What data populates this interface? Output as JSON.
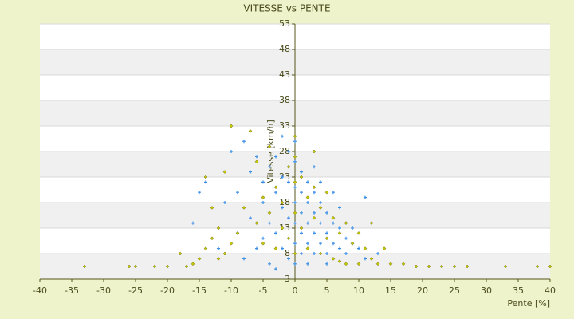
{
  "chart_data": {
    "type": "scatter",
    "title": "VITESSE vs PENTE",
    "x_label": "Pente [%]",
    "y_label": "Vitesse [km/h]",
    "xlim": [
      -40,
      40
    ],
    "xticks": [
      -40,
      -35,
      -30,
      -25,
      -20,
      -15,
      -10,
      -5,
      0,
      5,
      10,
      15,
      20,
      25,
      30,
      35,
      40
    ],
    "ylim": [
      3,
      53
    ],
    "yticks": [
      3,
      8,
      13,
      18,
      23,
      28,
      33,
      38,
      43,
      48,
      53
    ],
    "grid": true,
    "series": [
      {
        "color": "#3a8ee6",
        "marker": "plus",
        "x": [
          -10,
          -8,
          -7,
          -6,
          -5,
          -5,
          -4,
          -4,
          -3,
          -3,
          -3,
          -2,
          -2,
          -2,
          -1,
          -1,
          -1,
          -1,
          0,
          0,
          0,
          0,
          0,
          0,
          1,
          1,
          1,
          1,
          1,
          2,
          2,
          2,
          2,
          3,
          3,
          3,
          3,
          4,
          4,
          4,
          5,
          5,
          5,
          6,
          6,
          7,
          7,
          8,
          8,
          9,
          10,
          11,
          11,
          -15,
          -14,
          -16,
          -12,
          -9,
          -7,
          -6,
          -4,
          -8,
          -11,
          2,
          5,
          -3,
          13,
          6,
          0,
          -2,
          3,
          9,
          7,
          -5,
          -9,
          4
        ],
        "values": [
          28,
          30,
          24,
          27,
          22,
          18,
          25,
          14,
          27,
          20,
          12,
          23,
          17,
          9,
          28,
          22,
          15,
          7,
          26,
          21,
          18,
          14,
          10,
          6,
          24,
          20,
          16,
          12,
          8,
          22,
          18,
          14,
          10,
          20,
          16,
          12,
          8,
          18,
          14,
          10,
          16,
          12,
          8,
          14,
          10,
          13,
          9,
          11,
          8,
          10,
          9,
          7,
          19,
          20,
          22,
          14,
          9,
          12,
          15,
          9,
          6,
          7,
          18,
          6,
          6,
          5,
          8,
          20,
          30,
          31,
          25,
          13,
          17,
          11,
          20,
          22
        ]
      },
      {
        "color": "#c8c800",
        "marker": "diamond",
        "x": [
          -33,
          -26,
          -25,
          -22,
          -20,
          -17,
          -16,
          -15,
          -14,
          -13,
          -12,
          -12,
          -11,
          -10,
          -10,
          -9,
          -8,
          -7,
          -6,
          -6,
          -5,
          -5,
          -4,
          -4,
          -3,
          -3,
          -2,
          -2,
          -1,
          -1,
          0,
          0,
          0,
          0,
          0,
          1,
          1,
          2,
          2,
          3,
          3,
          4,
          4,
          5,
          5,
          6,
          6,
          7,
          7,
          8,
          8,
          9,
          10,
          10,
          11,
          12,
          13,
          14,
          15,
          17,
          19,
          21,
          23,
          25,
          27,
          33,
          38,
          40,
          -13,
          -18,
          -11,
          3,
          -14,
          12
        ],
        "values": [
          5.5,
          5.5,
          5.5,
          5.5,
          5.5,
          5.5,
          6,
          7,
          9,
          11,
          13,
          7,
          8,
          33,
          10,
          12,
          17,
          32,
          26,
          14,
          19,
          10,
          16,
          29,
          21,
          9,
          18,
          13,
          25,
          11,
          31,
          27,
          22,
          16,
          8,
          23,
          13,
          19,
          9,
          21,
          15,
          17,
          8,
          20,
          11,
          15,
          7,
          12,
          6.5,
          14,
          6,
          10,
          12,
          6,
          9,
          7,
          6,
          9,
          6,
          6,
          5.5,
          5.5,
          5.5,
          5.5,
          5.5,
          5.5,
          5.5,
          5.5,
          17,
          8,
          24,
          28,
          23,
          14
        ]
      }
    ]
  }
}
